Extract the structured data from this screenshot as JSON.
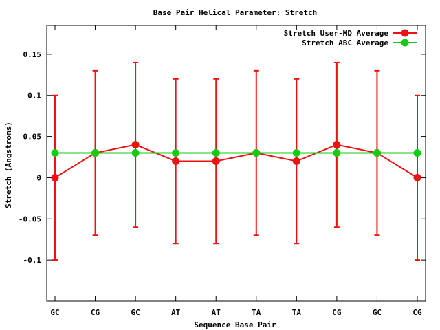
{
  "chart_data": {
    "type": "line",
    "title": "Base Pair Helical Parameter: Stretch",
    "xlabel": "Sequence Base Pair",
    "ylabel": "Stretch (Angstroms)",
    "categories": [
      "GC",
      "CG",
      "GC",
      "AT",
      "AT",
      "TA",
      "TA",
      "CG",
      "GC",
      "CG"
    ],
    "ylim": [
      -0.15,
      0.185
    ],
    "yticks": [
      -0.1,
      -0.05,
      0,
      0.05,
      0.1,
      0.15
    ],
    "ytick_labels": [
      "-0.1",
      "-0.05",
      "0",
      "0.05",
      "0.1",
      "0.15"
    ],
    "legend_position": "top-right",
    "grid": false,
    "series": [
      {
        "name": "Stretch User-MD Average",
        "color": "#ee1111",
        "values": [
          0.0,
          0.03,
          0.04,
          0.02,
          0.02,
          0.03,
          0.02,
          0.04,
          0.03,
          0.0
        ],
        "error": [
          0.1,
          0.1,
          0.1,
          0.1,
          0.1,
          0.1,
          0.1,
          0.1,
          0.1,
          0.1
        ]
      },
      {
        "name": "Stretch ABC Average",
        "color": "#11cc11",
        "values": [
          0.03,
          0.03,
          0.03,
          0.03,
          0.03,
          0.03,
          0.03,
          0.03,
          0.03,
          0.03
        ]
      }
    ]
  }
}
